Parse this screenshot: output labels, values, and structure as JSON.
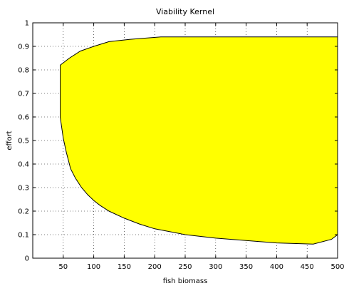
{
  "chart_data": {
    "type": "area",
    "title": "Viability Kernel",
    "xlabel": "fish biomass",
    "ylabel": "effort",
    "xlim": [
      0,
      500
    ],
    "ylim": [
      0,
      1
    ],
    "xticks": [
      50,
      100,
      150,
      200,
      250,
      300,
      350,
      400,
      450,
      500
    ],
    "yticks": [
      0,
      0.1,
      0.2,
      0.3,
      0.4,
      0.5,
      0.6,
      0.7,
      0.8,
      0.9,
      1
    ],
    "xtick_labels": [
      "50",
      "100",
      "150",
      "200",
      "250",
      "300",
      "350",
      "400",
      "450",
      "500"
    ],
    "ytick_labels": [
      "0",
      "0.1",
      "0.2",
      "0.3",
      "0.4",
      "0.5",
      "0.6",
      "0.7",
      "0.8",
      "0.9",
      "1"
    ],
    "grid": true,
    "fill_color": "#ffff00",
    "edge_color": "#000000",
    "series": [
      {
        "upper_boundary": {
          "x": [
            45,
            60,
            78,
            100,
            125,
            160,
            210,
            260,
            320,
            400,
            460,
            500
          ],
          "y": [
            0.82,
            0.85,
            0.88,
            0.9,
            0.92,
            0.93,
            0.94,
            0.94,
            0.94,
            0.94,
            0.94,
            0.94
          ]
        },
        "lower_boundary": {
          "x": [
            45,
            50,
            55,
            62,
            70,
            80,
            90,
            100,
            110,
            125,
            150,
            175,
            200,
            250,
            300,
            350,
            400,
            460,
            490,
            500
          ],
          "y": [
            0.6,
            0.51,
            0.45,
            0.38,
            0.34,
            0.3,
            0.27,
            0.245,
            0.225,
            0.2,
            0.17,
            0.145,
            0.125,
            0.1,
            0.085,
            0.075,
            0.065,
            0.06,
            0.08,
            0.1
          ]
        }
      }
    ]
  }
}
